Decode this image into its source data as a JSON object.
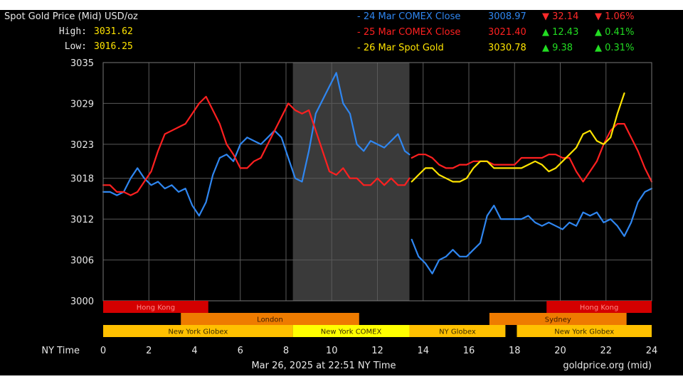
{
  "header": {
    "title": "Spot Gold Price (Mid) USD/oz",
    "high_label": "High:",
    "high_value": "3031.62",
    "low_label": "Low:",
    "low_value": "3016.25"
  },
  "legend": [
    {
      "label": "- 24 Mar COMEX Close",
      "value": "3008.97",
      "change": "▼ 32.14",
      "pct": "▼ 1.06%",
      "color": "#2f86f0",
      "change_color": "#ff2a2a"
    },
    {
      "label": "- 25 Mar COMEX Close",
      "value": "3021.40",
      "change": "▲ 12.43",
      "pct": "▲ 0.41%",
      "color": "#ff2020",
      "change_color": "#22dd22"
    },
    {
      "label": "- 26 Mar Spot Gold",
      "value": "3030.78",
      "change": "▲ 9.38",
      "pct": "▲ 0.31%",
      "color": "#ffe400",
      "change_color": "#22dd22"
    }
  ],
  "sessions": [
    {
      "label": "Hong Kong",
      "color": "#d40000",
      "text_color": "#ff8a8a",
      "row": 0,
      "start": 0,
      "end": 4.6
    },
    {
      "label": "Hong Kong",
      "color": "#d40000",
      "text_color": "#ff8a8a",
      "row": 0,
      "start": 19.4,
      "end": 24
    },
    {
      "label": "London",
      "color": "#ee7b00",
      "text_color": "#3a1a00",
      "row": 1,
      "start": 3.4,
      "end": 11.2
    },
    {
      "label": "Sydney",
      "color": "#ee7b00",
      "text_color": "#3a1a00",
      "row": 1,
      "start": 16.9,
      "end": 22.9
    },
    {
      "label": "New York Globex",
      "color": "#ffc000",
      "text_color": "#3a2a00",
      "row": 2,
      "start": 0,
      "end": 8.3
    },
    {
      "label": "New York COMEX",
      "color": "#ffff00",
      "text_color": "#3a2a00",
      "row": 2,
      "start": 8.3,
      "end": 13.4
    },
    {
      "label": "NY Globex",
      "color": "#ffc000",
      "text_color": "#3a2a00",
      "row": 2,
      "start": 13.4,
      "end": 17.6
    },
    {
      "label": "New York Globex",
      "color": "#ffc000",
      "text_color": "#3a2a00",
      "row": 2,
      "start": 18.1,
      "end": 24
    }
  ],
  "footer": {
    "x_axis_label": "NY Time",
    "timestamp": "Mar 26, 2025 at 22:51 NY Time",
    "source": "goldprice.org (mid)"
  },
  "chart_data": {
    "type": "line",
    "title": "Spot Gold Price (Mid) USD/oz",
    "xlabel": "NY Time",
    "ylabel": "",
    "xlim": [
      0,
      24
    ],
    "ylim": [
      3000,
      3035
    ],
    "x_ticks": [
      0,
      2,
      4,
      6,
      8,
      10,
      12,
      14,
      16,
      18,
      20,
      22,
      24
    ],
    "y_ticks": [
      3000,
      3006,
      3012,
      3018,
      3023,
      3029,
      3035
    ],
    "grid": true,
    "shaded_region": [
      8.3,
      13.4
    ],
    "series": [
      {
        "name": "24 Mar COMEX Close",
        "color": "#2f86f0",
        "segments": [
          {
            "x": [
              0,
              0.3,
              0.6,
              0.9,
              1.2,
              1.5,
              1.8,
              2.1,
              2.4,
              2.7,
              3.0,
              3.3,
              3.6,
              3.9,
              4.2,
              4.5,
              4.8,
              5.1,
              5.4,
              5.7,
              6.0,
              6.3,
              6.6,
              6.9,
              7.2,
              7.5,
              7.8,
              8.1,
              8.4,
              8.7,
              9.0,
              9.3,
              9.6,
              9.9,
              10.2,
              10.5,
              10.8,
              11.1,
              11.4,
              11.7,
              12.0,
              12.3,
              12.6,
              12.9,
              13.2,
              13.4
            ],
            "y": [
              3016,
              3016,
              3015.5,
              3016,
              3018,
              3019.5,
              3018,
              3017,
              3017.5,
              3016.5,
              3017,
              3016,
              3016.5,
              3014,
              3012.5,
              3014.5,
              3018.5,
              3021,
              3021.5,
              3020.5,
              3023,
              3024,
              3023.5,
              3023,
              3024,
              3025,
              3024,
              3021,
              3018,
              3017.5,
              3022,
              3027.5,
              3029.5,
              3031.5,
              3033.5,
              3029,
              3027.5,
              3023,
              3022,
              3023.5,
              3023,
              3022.5,
              3023.5,
              3024.5,
              3022,
              3021.5
            ]
          },
          {
            "x": [
              13.5,
              13.8,
              14.1,
              14.4,
              14.7,
              15.0,
              15.3,
              15.6,
              15.9,
              16.2,
              16.5,
              16.8,
              17.1,
              17.4,
              17.7,
              18.0,
              18.3,
              18.6,
              18.9,
              19.2,
              19.5,
              19.8,
              20.1,
              20.4,
              20.7,
              21.0,
              21.3,
              21.6,
              21.9,
              22.2,
              22.5,
              22.8,
              23.1,
              23.4,
              23.7,
              24.0
            ],
            "y": [
              3009,
              3006.5,
              3005.5,
              3004,
              3006,
              3006.5,
              3007.5,
              3006.5,
              3006.5,
              3007.5,
              3008.5,
              3012.5,
              3014,
              3012,
              3012,
              3012,
              3012,
              3012.5,
              3011.5,
              3011,
              3011.5,
              3011,
              3010.5,
              3011.5,
              3011,
              3013,
              3012.5,
              3013,
              3011.5,
              3012,
              3011,
              3009.5,
              3011.5,
              3014.5,
              3016,
              3016.5
            ]
          }
        ]
      },
      {
        "name": "25 Mar COMEX Close",
        "color": "#ff2020",
        "segments": [
          {
            "x": [
              0,
              0.3,
              0.6,
              0.9,
              1.2,
              1.5,
              1.8,
              2.1,
              2.4,
              2.7,
              3.0,
              3.3,
              3.6,
              3.9,
              4.2,
              4.5,
              4.8,
              5.1,
              5.4,
              5.7,
              6.0,
              6.3,
              6.6,
              6.9,
              7.2,
              7.5,
              7.8,
              8.1,
              8.4,
              8.7,
              9.0,
              9.3,
              9.6,
              9.9,
              10.2,
              10.5,
              10.8,
              11.1,
              11.4,
              11.7,
              12.0,
              12.3,
              12.6,
              12.9,
              13.2,
              13.4
            ],
            "y": [
              3017,
              3017,
              3016,
              3016,
              3015.5,
              3016,
              3017.5,
              3019,
              3022,
              3024.5,
              3025,
              3025.5,
              3026,
              3027.5,
              3029,
              3030,
              3028,
              3026,
              3023,
              3021.5,
              3019.5,
              3019.5,
              3020.5,
              3021,
              3023,
              3025,
              3027,
              3029,
              3028,
              3027.5,
              3028,
              3025,
              3022,
              3019,
              3018.5,
              3019.5,
              3018,
              3018,
              3017,
              3017,
              3018,
              3017,
              3018,
              3017,
              3017,
              3018
            ]
          },
          {
            "x": [
              13.5,
              13.8,
              14.1,
              14.4,
              14.7,
              15.0,
              15.3,
              15.6,
              15.9,
              16.2,
              16.5,
              16.8,
              17.1,
              17.4,
              17.7,
              18.0,
              18.3,
              18.6,
              18.9,
              19.2,
              19.5,
              19.8,
              20.1,
              20.4,
              20.7,
              21.0,
              21.3,
              21.6,
              21.9,
              22.2,
              22.5,
              22.8,
              23.1,
              23.4,
              23.7,
              24.0
            ],
            "y": [
              3021,
              3021.5,
              3021.5,
              3021,
              3020,
              3019.5,
              3019.5,
              3020,
              3020,
              3020.5,
              3020.5,
              3020.5,
              3020,
              3020,
              3020,
              3020,
              3021,
              3021,
              3021,
              3021,
              3021.5,
              3021.5,
              3021,
              3021,
              3019,
              3017.5,
              3019,
              3020.5,
              3023,
              3025,
              3026,
              3026,
              3024,
              3022,
              3019.5,
              3017.5
            ]
          }
        ]
      },
      {
        "name": "26 Mar Spot Gold",
        "color": "#ffe400",
        "segments": [
          {
            "x": [
              13.5,
              13.8,
              14.1,
              14.4,
              14.7,
              15.0,
              15.3,
              15.6,
              15.9,
              16.2,
              16.5,
              16.8,
              17.1,
              17.4,
              17.7,
              18.0,
              18.3,
              18.6,
              18.9,
              19.2,
              19.5,
              19.8,
              20.1,
              20.4,
              20.7,
              21.0,
              21.3,
              21.6,
              21.9,
              22.2,
              22.5,
              22.8
            ],
            "y": [
              3017.5,
              3018.5,
              3019.5,
              3019.5,
              3018.5,
              3018,
              3017.5,
              3017.5,
              3018,
              3019.5,
              3020.5,
              3020.5,
              3019.5,
              3019.5,
              3019.5,
              3019.5,
              3019.5,
              3020,
              3020.5,
              3020,
              3019,
              3019.5,
              3020.5,
              3021.5,
              3022.5,
              3024.5,
              3025,
              3023.5,
              3023,
              3024,
              3027.5,
              3030.5
            ]
          }
        ]
      }
    ]
  }
}
